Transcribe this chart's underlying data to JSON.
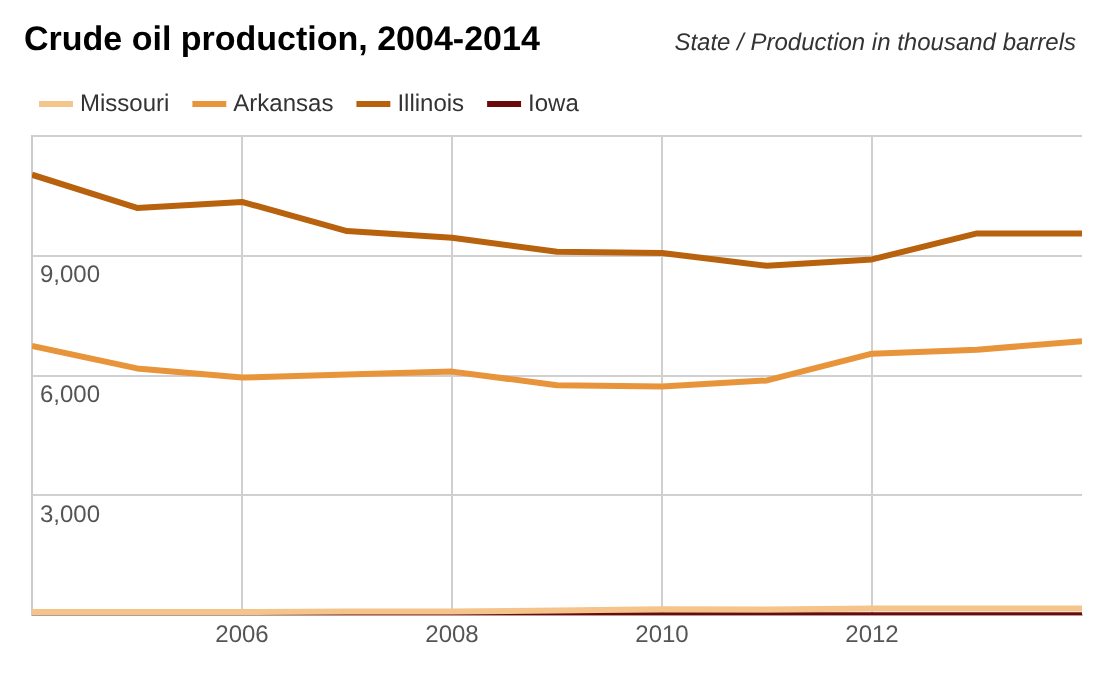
{
  "chart_data": {
    "type": "line",
    "title": "Crude oil production, 2004-2014",
    "subtitle": "State / Production in thousand barrels",
    "x": [
      2004,
      2005,
      2006,
      2007,
      2008,
      2009,
      2010,
      2011,
      2012,
      2013,
      2014
    ],
    "series": [
      {
        "name": "Missouri",
        "color": "#f5c48a",
        "values": [
          80,
          80,
          80,
          90,
          90,
          120,
          150,
          140,
          170,
          170,
          170
        ]
      },
      {
        "name": "Arkansas",
        "color": "#e8943a",
        "values": [
          6740,
          6180,
          5950,
          6030,
          6100,
          5760,
          5730,
          5880,
          6550,
          6650,
          6860
        ]
      },
      {
        "name": "Illinois",
        "color": "#b8620e",
        "values": [
          11030,
          10200,
          10350,
          9620,
          9450,
          9100,
          9070,
          8750,
          8910,
          9560,
          9560
        ]
      },
      {
        "name": "Iowa",
        "color": "#6b0a0a",
        "values": [
          0,
          0,
          0,
          0,
          0,
          0,
          0,
          0,
          0,
          0,
          0
        ]
      }
    ],
    "xlim": [
      2004,
      2014
    ],
    "xticks": [
      2006,
      2008,
      2010,
      2012
    ],
    "ylim": [
      0,
      12000
    ],
    "yticks": [
      {
        "value": 0,
        "label": null
      },
      {
        "value": 3000,
        "label": "3,000"
      },
      {
        "value": 6000,
        "label": "6,000"
      },
      {
        "value": 9000,
        "label": "9,000"
      },
      {
        "value": 12000,
        "label": null
      }
    ],
    "grid": true,
    "legend": "top left",
    "marker": "none",
    "line_style": "solid"
  }
}
